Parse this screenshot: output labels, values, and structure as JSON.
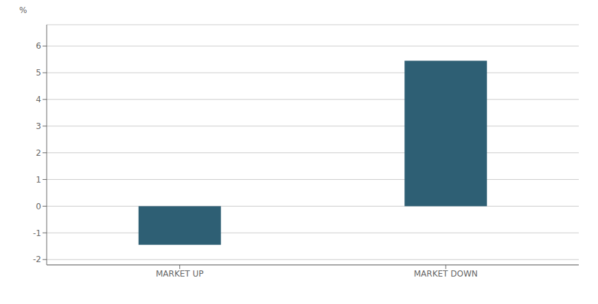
{
  "chart_data": {
    "type": "bar",
    "categories": [
      "MARKET UP",
      "MARKET DOWN"
    ],
    "values": [
      -1.45,
      5.45
    ],
    "color": "#2e5f74",
    "ylim": [
      -2.2,
      6.8
    ],
    "yticks": [
      -2,
      -1,
      0,
      1,
      2,
      3,
      4,
      5,
      6
    ],
    "ylabel": "%",
    "grid": true
  }
}
